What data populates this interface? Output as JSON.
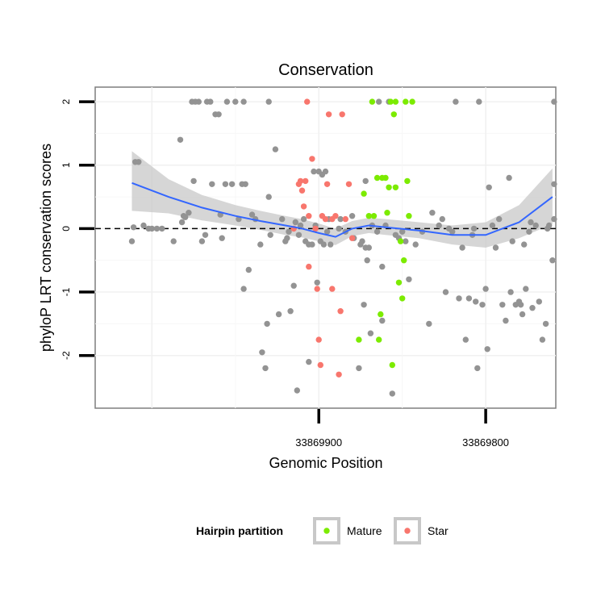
{
  "chart_data": {
    "type": "scatter",
    "title": "Conservation",
    "xlabel": "Genomic Position",
    "ylabel": "phyloP LRT conservation scores",
    "x_reversed": true,
    "xlim": [
      34,
      -242
    ],
    "ylim": [
      -2.83,
      2.23
    ],
    "x_ticks": [
      {
        "value": -100,
        "label": "33869900"
      },
      {
        "value": -200,
        "label": "33869800"
      }
    ],
    "y_ticks": [
      -2,
      -1,
      0,
      1,
      2
    ],
    "hline": {
      "y": 0,
      "style": "dashed",
      "color": "#000000"
    },
    "grid": true,
    "legend": {
      "title": "Hairpin partition",
      "placement": "bottom",
      "entries": [
        {
          "name": "Mature",
          "color": "#7CEB00"
        },
        {
          "name": "Star",
          "color": "#F8766D"
        }
      ]
    },
    "colors": {
      "other": "#939393",
      "Mature": "#7CEB00",
      "Star": "#F8766D",
      "smooth": "#3366FF",
      "band": "#C8C8C8"
    },
    "smooth": {
      "x": [
        12,
        -10,
        -30,
        -50,
        -65,
        -80,
        -90,
        -100,
        -110,
        -120,
        -130,
        -140,
        -160,
        -180,
        -200,
        -220,
        -240
      ],
      "y": [
        0.72,
        0.5,
        0.33,
        0.2,
        0.12,
        0.05,
        0.0,
        -0.07,
        -0.13,
        0.0,
        0.05,
        0.02,
        -0.03,
        -0.1,
        -0.1,
        0.1,
        0.5
      ],
      "ymin": [
        0.28,
        0.24,
        0.13,
        0.05,
        -0.02,
        -0.1,
        -0.14,
        -0.2,
        -0.26,
        -0.12,
        -0.07,
        -0.1,
        -0.15,
        -0.25,
        -0.3,
        -0.15,
        0.07
      ],
      "ymax": [
        1.22,
        0.78,
        0.53,
        0.37,
        0.28,
        0.2,
        0.15,
        0.08,
        0.0,
        0.12,
        0.17,
        0.15,
        0.1,
        0.05,
        0.1,
        0.37,
        0.95
      ]
    },
    "series": [
      {
        "name": "",
        "points": [
          [
            12,
            -0.2
          ],
          [
            11,
            0.02
          ],
          [
            10,
            1.05
          ],
          [
            8,
            1.05
          ],
          [
            5,
            0.05
          ],
          [
            2,
            0.0
          ],
          [
            0,
            0.0
          ],
          [
            -3,
            0.0
          ],
          [
            -6,
            0.0
          ],
          [
            -13,
            -0.2
          ],
          [
            -17,
            1.4
          ],
          [
            -18,
            0.1
          ],
          [
            -19,
            0.2
          ],
          [
            -20,
            0.18
          ],
          [
            -22,
            0.25
          ],
          [
            -24,
            2.0
          ],
          [
            -25,
            0.75
          ],
          [
            -26,
            2.0
          ],
          [
            -28,
            2.0
          ],
          [
            -30,
            -0.2
          ],
          [
            -32,
            -0.1
          ],
          [
            -33,
            2.0
          ],
          [
            -35,
            2.0
          ],
          [
            -36,
            0.7
          ],
          [
            -38,
            1.8
          ],
          [
            -40,
            1.8
          ],
          [
            -41,
            0.22
          ],
          [
            -42,
            -0.15
          ],
          [
            -44,
            0.7
          ],
          [
            -45,
            2.0
          ],
          [
            -48,
            0.7
          ],
          [
            -50,
            2.0
          ],
          [
            -52,
            0.15
          ],
          [
            -54,
            0.7
          ],
          [
            -55,
            -0.95
          ],
          [
            -55,
            2.0
          ],
          [
            -56,
            0.7
          ],
          [
            -58,
            -0.65
          ],
          [
            -60,
            0.22
          ],
          [
            -62,
            0.15
          ],
          [
            -65,
            -0.25
          ],
          [
            -66,
            -1.95
          ],
          [
            -68,
            -2.2
          ],
          [
            -69,
            -1.5
          ],
          [
            -70,
            0.5
          ],
          [
            -70,
            2.0
          ],
          [
            -71,
            -0.1
          ],
          [
            -74,
            1.25
          ],
          [
            -76,
            -1.35
          ],
          [
            -78,
            0.15
          ],
          [
            -80,
            -0.2
          ],
          [
            -81,
            -0.15
          ],
          [
            -82,
            -0.05
          ],
          [
            -83,
            -1.3
          ],
          [
            -85,
            -0.9
          ],
          [
            -86,
            0.1
          ],
          [
            -87,
            -2.55
          ],
          [
            -88,
            -0.1
          ],
          [
            -89,
            0.05
          ],
          [
            -91,
            0.15
          ],
          [
            -92,
            -0.2
          ],
          [
            -94,
            -2.1
          ],
          [
            -94,
            -0.25
          ],
          [
            -96,
            -0.25
          ],
          [
            -97,
            0.9
          ],
          [
            -98,
            0.05
          ],
          [
            -99,
            -0.85
          ],
          [
            -100,
            0.9
          ],
          [
            -101,
            -0.2
          ],
          [
            -102,
            0.85
          ],
          [
            -103,
            -0.25
          ],
          [
            -104,
            0.9
          ],
          [
            -105,
            -0.05
          ],
          [
            -106,
            0.15
          ],
          [
            -107,
            -0.25
          ],
          [
            -112,
            0.0
          ],
          [
            -113,
            0.15
          ],
          [
            -116,
            -0.05
          ],
          [
            -120,
            0.2
          ],
          [
            -121,
            -0.15
          ],
          [
            -124,
            -2.2
          ],
          [
            -125,
            -0.25
          ],
          [
            -126,
            -0.2
          ],
          [
            -127,
            -1.2
          ],
          [
            -128,
            -0.3
          ],
          [
            -128,
            0.75
          ],
          [
            -129,
            -0.5
          ],
          [
            -130,
            -0.3
          ],
          [
            -131,
            -1.65
          ],
          [
            -132,
            0.05
          ],
          [
            -135,
            -0.05
          ],
          [
            -136,
            2.0
          ],
          [
            -138,
            -0.6
          ],
          [
            -138,
            -1.45
          ],
          [
            -140,
            0.05
          ],
          [
            -142,
            2.0
          ],
          [
            -144,
            -2.6
          ],
          [
            -146,
            -0.1
          ],
          [
            -148,
            -0.15
          ],
          [
            -150,
            -0.05
          ],
          [
            -152,
            -0.2
          ],
          [
            -154,
            -0.8
          ],
          [
            -158,
            -0.25
          ],
          [
            -162,
            -0.05
          ],
          [
            -166,
            -1.5
          ],
          [
            -168,
            0.25
          ],
          [
            -172,
            0.05
          ],
          [
            -174,
            0.15
          ],
          [
            -176,
            -1.0
          ],
          [
            -178,
            0.0
          ],
          [
            -180,
            -0.05
          ],
          [
            -182,
            2.0
          ],
          [
            -184,
            -1.1
          ],
          [
            -186,
            -0.3
          ],
          [
            -188,
            -1.75
          ],
          [
            -190,
            -1.1
          ],
          [
            -192,
            -0.1
          ],
          [
            -193,
            0.0
          ],
          [
            -194,
            -1.15
          ],
          [
            -195,
            -2.2
          ],
          [
            -196,
            2.0
          ],
          [
            -198,
            -1.2
          ],
          [
            -200,
            -0.95
          ],
          [
            -201,
            -1.9
          ],
          [
            -202,
            0.65
          ],
          [
            -204,
            0.05
          ],
          [
            -206,
            -0.3
          ],
          [
            -208,
            0.15
          ],
          [
            -210,
            -1.2
          ],
          [
            -212,
            -1.45
          ],
          [
            -214,
            0.8
          ],
          [
            -215,
            -1.0
          ],
          [
            -216,
            -0.2
          ],
          [
            -218,
            -1.2
          ],
          [
            -220,
            -1.15
          ],
          [
            -221,
            -1.2
          ],
          [
            -222,
            -1.35
          ],
          [
            -223,
            -0.25
          ],
          [
            -224,
            -0.95
          ],
          [
            -226,
            -0.05
          ],
          [
            -227,
            0.1
          ],
          [
            -228,
            -1.25
          ],
          [
            -230,
            0.05
          ],
          [
            -232,
            -1.15
          ],
          [
            -234,
            -1.75
          ],
          [
            -236,
            -1.5
          ],
          [
            -237,
            0.0
          ],
          [
            -238,
            0.05
          ],
          [
            -240,
            -0.5
          ],
          [
            -241,
            2.0
          ],
          [
            -241,
            0.7
          ],
          [
            -241,
            0.15
          ]
        ]
      },
      {
        "name": "Mature",
        "points": [
          [
            -124,
            -1.75
          ],
          [
            -127,
            0.55
          ],
          [
            -130,
            0.2
          ],
          [
            -132,
            2.0
          ],
          [
            -133,
            0.2
          ],
          [
            -135,
            0.8
          ],
          [
            -136,
            -1.75
          ],
          [
            -137,
            -1.35
          ],
          [
            -138,
            0.8
          ],
          [
            -140,
            0.8
          ],
          [
            -141,
            0.25
          ],
          [
            -142,
            0.65
          ],
          [
            -143,
            2.0
          ],
          [
            -144,
            -2.15
          ],
          [
            -145,
            1.8
          ],
          [
            -146,
            0.65
          ],
          [
            -146,
            2.0
          ],
          [
            -148,
            -0.85
          ],
          [
            -149,
            -0.2
          ],
          [
            -150,
            -1.1
          ],
          [
            -151,
            -0.5
          ],
          [
            -152,
            2.0
          ],
          [
            -153,
            0.75
          ],
          [
            -154,
            0.2
          ],
          [
            -156,
            2.0
          ]
        ]
      },
      {
        "name": "Star",
        "points": [
          [
            -85,
            0.0
          ],
          [
            -88,
            0.7
          ],
          [
            -89,
            0.75
          ],
          [
            -90,
            0.6
          ],
          [
            -91,
            0.35
          ],
          [
            -92,
            0.75
          ],
          [
            -93,
            2.0
          ],
          [
            -94,
            0.2
          ],
          [
            -94,
            -0.6
          ],
          [
            -96,
            1.1
          ],
          [
            -98,
            0.0
          ],
          [
            -99,
            -0.95
          ],
          [
            -100,
            -1.75
          ],
          [
            -101,
            -2.15
          ],
          [
            -102,
            0.2
          ],
          [
            -104,
            0.15
          ],
          [
            -105,
            0.7
          ],
          [
            -106,
            1.8
          ],
          [
            -108,
            0.15
          ],
          [
            -108,
            -0.95
          ],
          [
            -110,
            0.2
          ],
          [
            -112,
            -2.3
          ],
          [
            -113,
            -1.3
          ],
          [
            -114,
            1.8
          ],
          [
            -116,
            0.15
          ],
          [
            -118,
            0.7
          ],
          [
            -120,
            -0.15
          ]
        ]
      }
    ]
  }
}
